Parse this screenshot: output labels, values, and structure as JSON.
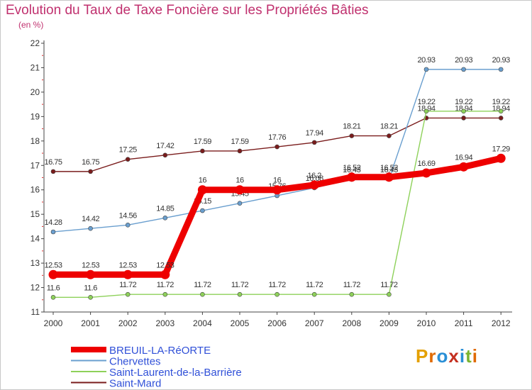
{
  "chart_data": {
    "type": "line",
    "title": "Evolution du Taux de Taxe Foncière sur les Propriétés Bâties",
    "subtitle": "(en %)",
    "xlabel": "",
    "ylabel": "",
    "ylim": [
      11,
      22
    ],
    "y_ticks": [
      11,
      12,
      13,
      14,
      15,
      16,
      17,
      18,
      19,
      20,
      21,
      22
    ],
    "x": [
      2000,
      2001,
      2002,
      2003,
      2004,
      2005,
      2006,
      2007,
      2008,
      2009,
      2010,
      2011,
      2012
    ],
    "grid": false,
    "legend_position": "bottom-left",
    "series": [
      {
        "name": "Saint-Mard",
        "color": "#7a1c1c",
        "values": [
          16.75,
          16.75,
          17.25,
          17.42,
          17.59,
          17.59,
          17.76,
          17.94,
          18.21,
          18.21,
          18.94,
          18.94,
          18.94
        ],
        "labels": [
          "16.75",
          "16.75",
          "17.25",
          "17.42",
          "17.59",
          "17.59",
          "17.76",
          "17.94",
          "18.21",
          "18.21",
          "18.94",
          "18.94",
          "18.94"
        ]
      },
      {
        "name": "Saint-Laurent-de-la-Barrière",
        "color": "#8ed15a",
        "values": [
          11.6,
          11.6,
          11.72,
          11.72,
          11.72,
          11.72,
          11.72,
          11.72,
          11.72,
          11.72,
          19.22,
          19.22,
          19.22
        ],
        "labels": [
          "11.6",
          "11.6",
          "11.72",
          "11.72",
          "11.72",
          "11.72",
          "11.72",
          "11.72",
          "11.72",
          "11.72",
          "19.22",
          "19.22",
          "19.22"
        ]
      },
      {
        "name": "Chervettes",
        "color": "#6a9fcf",
        "values": [
          14.28,
          14.42,
          14.56,
          14.85,
          15.15,
          15.45,
          15.76,
          16.08,
          16.43,
          16.43,
          20.93,
          20.93,
          20.93
        ],
        "labels": [
          "14.28",
          "14.42",
          "14.56",
          "14.85",
          "15.15",
          "15.45",
          "15.76",
          "16.08",
          "16.43",
          "16.43",
          "20.93",
          "20.93",
          "20.93"
        ]
      },
      {
        "name": "BREUIL-LA-RéORTE",
        "color": "#ee0000",
        "values": [
          12.53,
          12.53,
          12.53,
          12.53,
          16,
          16,
          16,
          16.2,
          16.52,
          16.52,
          16.69,
          16.94,
          17.29
        ],
        "labels": [
          "12.53",
          "12.53",
          "12.53",
          "12.53",
          "16",
          "16",
          "16",
          "16.2",
          "16.52",
          "16.52",
          "16.69",
          "16.94",
          "17.29"
        ]
      }
    ],
    "legend": [
      {
        "name": "BREUIL-LA-RéORTE",
        "color": "#ee0000"
      },
      {
        "name": "Chervettes",
        "color": "#6a9fcf"
      },
      {
        "name": "Saint-Laurent-de-la-Barrière",
        "color": "#8ed15a"
      },
      {
        "name": "Saint-Mard",
        "color": "#7a1c1c"
      }
    ]
  },
  "logo": {
    "text": "Proxiti",
    "letter_colors": [
      "#e4a000",
      "#e06a00",
      "#2a8fd6",
      "#c43020",
      "#2a8fd6",
      "#7ab430",
      "#e06a00"
    ]
  }
}
